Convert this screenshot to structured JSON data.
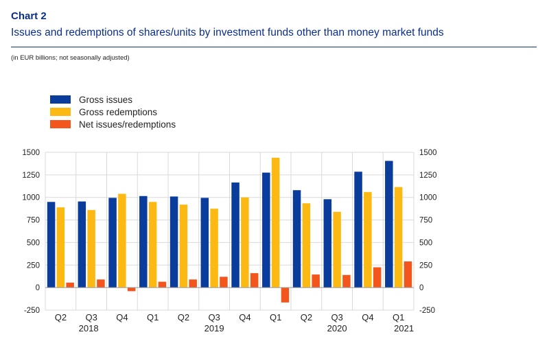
{
  "header": {
    "chart_number": "Chart 2",
    "title": "Issues and redemptions of shares/units by investment funds other than money market funds",
    "units": "(in EUR billions; not seasonally adjusted)"
  },
  "colors": {
    "gross_issues": "#0a3c9c",
    "gross_redemptions": "#fdb913",
    "net": "#f3561d",
    "title": "#0b2d8c"
  },
  "chart_data": {
    "type": "bar",
    "categories": [
      "Q2",
      "Q3",
      "Q4",
      "Q1",
      "Q2",
      "Q3",
      "Q4",
      "Q1",
      "Q2",
      "Q3",
      "Q4",
      "Q1"
    ],
    "year_labels": [
      "2018",
      "2019",
      "2020",
      "2021"
    ],
    "series": [
      {
        "name": "Gross issues",
        "color": "#0a3c9c",
        "values": [
          950,
          955,
          995,
          1015,
          1010,
          995,
          1165,
          1275,
          1080,
          980,
          1285,
          1405
        ]
      },
      {
        "name": "Gross redemptions",
        "color": "#fdb913",
        "values": [
          890,
          860,
          1040,
          950,
          920,
          875,
          1000,
          1440,
          935,
          840,
          1060,
          1115
        ]
      },
      {
        "name": "Net issues/redemptions",
        "color": "#f3561d",
        "values": [
          55,
          90,
          -40,
          65,
          90,
          120,
          160,
          -165,
          145,
          140,
          225,
          290
        ]
      }
    ],
    "ylim": [
      -250,
      1500
    ],
    "yticks": [
      -250,
      0,
      250,
      500,
      750,
      1000,
      1250,
      1500
    ],
    "ytick_labels": [
      "-250",
      "0",
      "250",
      "500",
      "750",
      "1000",
      "1250",
      "1500"
    ],
    "grid": true,
    "legend_position": "top-left",
    "dual_axis_labels": true
  }
}
